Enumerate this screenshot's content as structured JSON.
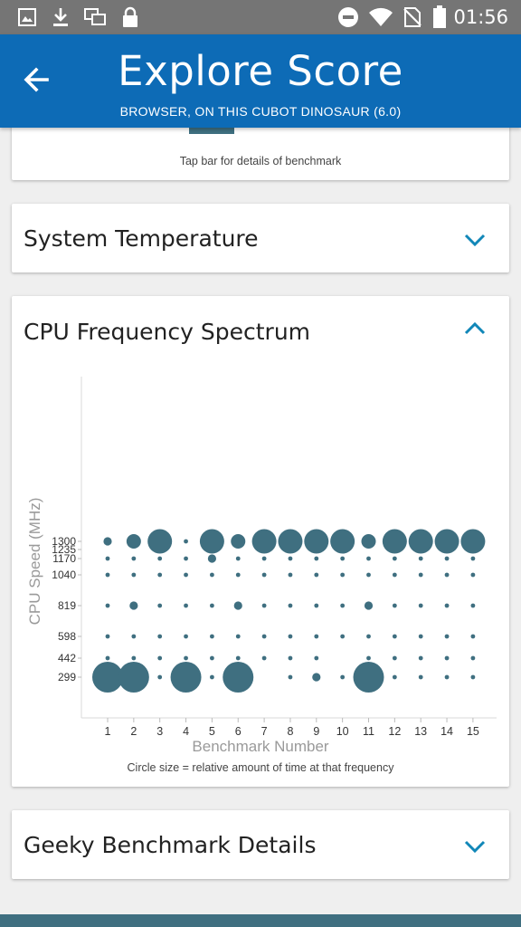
{
  "status_bar": {
    "time": "01:56",
    "icons": [
      "image-icon",
      "download-icon",
      "screens-icon",
      "lock-icon",
      "do-not-disturb-icon",
      "wifi-icon",
      "no-sim-icon",
      "battery-icon"
    ]
  },
  "app_bar": {
    "title": "Explore Score",
    "subtitle": "BROWSER, ON THIS CUBOT DINOSAUR (6.0)"
  },
  "benchmark_card": {
    "note": "Tap bar for details of benchmark"
  },
  "system_temperature": {
    "title": "System Temperature"
  },
  "cpu_frequency": {
    "title": "CPU Frequency Spectrum",
    "note": "Circle size = relative amount of time at that frequency"
  },
  "geeky_details": {
    "title": "Geeky Benchmark Details"
  },
  "colors": {
    "app_bar": "#0d6bb6",
    "status_bar": "#757575",
    "dot": "#3f6f80",
    "chevron": "#1187b8"
  },
  "chart_data": {
    "type": "scatter",
    "xlabel": "Benchmark Number",
    "ylabel": "CPU Speed (MHz)",
    "x": [
      1,
      2,
      3,
      4,
      5,
      6,
      7,
      8,
      9,
      10,
      11,
      12,
      13,
      14,
      15
    ],
    "y_ticks": [
      299,
      442,
      598,
      819,
      1040,
      1170,
      1235,
      1300
    ],
    "grid": false,
    "size_levels_note": "bubble size levels 0-5 per benchmark, ordered by y_ticks",
    "points": [
      {
        "x": 1,
        "sizes": [
          5,
          1,
          1,
          1,
          1,
          1,
          0,
          2
        ]
      },
      {
        "x": 2,
        "sizes": [
          5,
          1,
          1,
          2,
          1,
          1,
          0,
          3
        ]
      },
      {
        "x": 3,
        "sizes": [
          1,
          1,
          1,
          1,
          1,
          1,
          0,
          4
        ]
      },
      {
        "x": 4,
        "sizes": [
          5,
          1,
          1,
          1,
          1,
          1,
          0,
          1
        ]
      },
      {
        "x": 5,
        "sizes": [
          1,
          1,
          1,
          1,
          1,
          2,
          0,
          4
        ]
      },
      {
        "x": 6,
        "sizes": [
          5,
          1,
          1,
          2,
          1,
          1,
          0,
          3
        ]
      },
      {
        "x": 7,
        "sizes": [
          0,
          1,
          1,
          1,
          1,
          1,
          0,
          4
        ]
      },
      {
        "x": 8,
        "sizes": [
          1,
          1,
          1,
          1,
          1,
          1,
          0,
          4
        ]
      },
      {
        "x": 9,
        "sizes": [
          2,
          1,
          1,
          1,
          1,
          1,
          0,
          4
        ]
      },
      {
        "x": 10,
        "sizes": [
          1,
          0,
          1,
          1,
          1,
          1,
          0,
          4
        ]
      },
      {
        "x": 11,
        "sizes": [
          5,
          1,
          1,
          2,
          1,
          1,
          0,
          3
        ]
      },
      {
        "x": 12,
        "sizes": [
          1,
          1,
          1,
          1,
          1,
          1,
          0,
          4
        ]
      },
      {
        "x": 13,
        "sizes": [
          1,
          1,
          1,
          1,
          1,
          1,
          0,
          4
        ]
      },
      {
        "x": 14,
        "sizes": [
          1,
          1,
          1,
          1,
          1,
          1,
          0,
          4
        ]
      },
      {
        "x": 15,
        "sizes": [
          1,
          1,
          1,
          1,
          1,
          1,
          0,
          4
        ]
      }
    ]
  }
}
